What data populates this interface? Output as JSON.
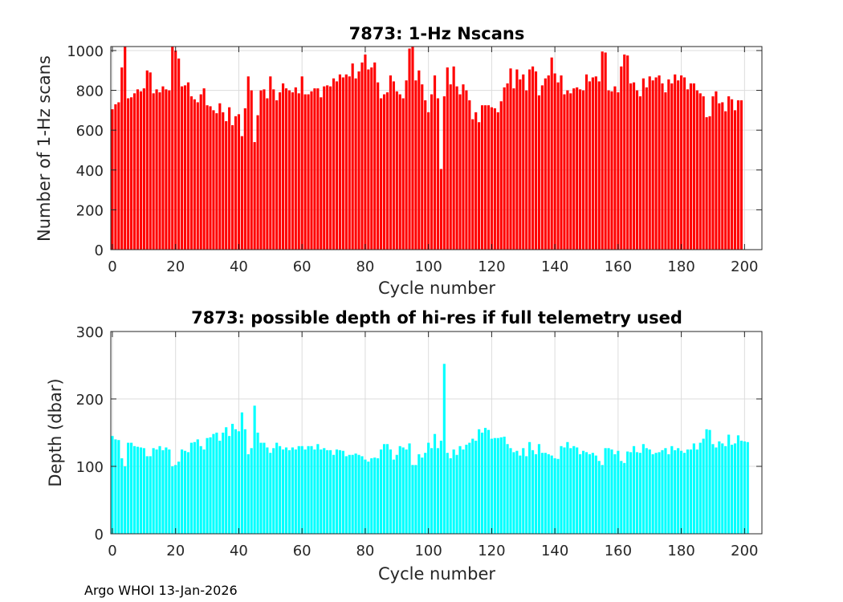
{
  "footer": "Argo WHOI 13-Jan-2026",
  "chart_data": [
    {
      "type": "bar",
      "title": "7873: 1-Hz Nscans",
      "xlabel": "Cycle number",
      "ylabel": "Number of 1-Hz scans",
      "xlim": [
        -0.5,
        205.5
      ],
      "ylim": [
        0,
        1020
      ],
      "xticks": [
        0,
        20,
        40,
        60,
        80,
        100,
        120,
        140,
        160,
        180,
        200
      ],
      "yticks": [
        0,
        200,
        400,
        600,
        800,
        1000
      ],
      "grid": true,
      "color": "#ff0000",
      "x_start": 0,
      "values": [
        705,
        730,
        740,
        915,
        1020,
        760,
        765,
        785,
        805,
        795,
        810,
        900,
        890,
        785,
        805,
        790,
        820,
        805,
        800,
        1020,
        1000,
        960,
        820,
        825,
        840,
        770,
        755,
        740,
        780,
        810,
        725,
        720,
        700,
        685,
        735,
        690,
        645,
        715,
        625,
        670,
        680,
        570,
        710,
        870,
        800,
        540,
        675,
        800,
        805,
        760,
        870,
        805,
        750,
        790,
        835,
        810,
        800,
        790,
        815,
        785,
        870,
        780,
        780,
        795,
        810,
        810,
        765,
        820,
        825,
        820,
        860,
        845,
        880,
        865,
        880,
        870,
        935,
        860,
        895,
        940,
        980,
        905,
        915,
        940,
        840,
        760,
        780,
        790,
        875,
        845,
        795,
        780,
        760,
        850,
        1010,
        1020,
        850,
        900,
        830,
        750,
        690,
        780,
        875,
        760,
        405,
        770,
        915,
        830,
        920,
        820,
        780,
        830,
        800,
        750,
        655,
        690,
        640,
        725,
        725,
        725,
        715,
        710,
        690,
        745,
        815,
        835,
        910,
        810,
        905,
        855,
        880,
        800,
        905,
        920,
        895,
        775,
        825,
        860,
        875,
        965,
        885,
        840,
        875,
        780,
        800,
        785,
        810,
        815,
        805,
        800,
        880,
        845,
        865,
        870,
        845,
        995,
        990,
        800,
        795,
        820,
        790,
        920,
        980,
        975,
        835,
        840,
        800,
        770,
        860,
        815,
        870,
        850,
        865,
        875,
        835,
        790,
        855,
        835,
        880,
        850,
        875,
        865,
        805,
        835,
        835,
        800,
        785,
        770,
        665,
        670,
        770,
        795,
        735,
        740,
        695,
        770,
        755,
        700,
        750,
        750
      ]
    },
    {
      "type": "bar",
      "title": "7873: possible depth of hi-res if full telemetry used",
      "xlabel": "Cycle number",
      "ylabel": "Depth (dbar)",
      "xlim": [
        -0.5,
        205.5
      ],
      "ylim": [
        0,
        300
      ],
      "xticks": [
        0,
        20,
        40,
        60,
        80,
        100,
        120,
        140,
        160,
        180,
        200
      ],
      "yticks": [
        0,
        100,
        200,
        300
      ],
      "grid": true,
      "color": "#00ffff",
      "x_start": 0,
      "values": [
        145,
        140,
        139,
        112,
        100,
        135,
        135,
        130,
        129,
        128,
        127,
        115,
        115,
        127,
        125,
        130,
        124,
        128,
        125,
        100,
        102,
        107,
        125,
        123,
        121,
        135,
        136,
        140,
        130,
        125,
        142,
        143,
        148,
        150,
        138,
        150,
        158,
        145,
        163,
        155,
        152,
        180,
        155,
        118,
        127,
        190,
        150,
        135,
        135,
        128,
        120,
        127,
        135,
        130,
        125,
        128,
        124,
        128,
        125,
        130,
        130,
        125,
        130,
        130,
        125,
        133,
        125,
        127,
        124,
        124,
        117,
        125,
        124,
        123,
        115,
        117,
        117,
        119,
        117,
        115,
        110,
        107,
        112,
        113,
        112,
        125,
        133,
        133,
        125,
        110,
        117,
        130,
        128,
        125,
        134,
        102,
        102,
        118,
        113,
        120,
        135,
        127,
        148,
        127,
        138,
        252,
        120,
        112,
        125,
        117,
        130,
        125,
        132,
        135,
        141,
        138,
        155,
        150,
        157,
        154,
        141,
        142,
        142,
        143,
        144,
        133,
        127,
        121,
        123,
        116,
        127,
        115,
        136,
        124,
        118,
        133,
        120,
        120,
        118,
        116,
        112,
        111,
        130,
        128,
        136,
        127,
        130,
        128,
        118,
        123,
        121,
        118,
        120,
        116,
        108,
        102,
        127,
        127,
        125,
        118,
        123,
        108,
        105,
        122,
        121,
        130,
        121,
        120,
        133,
        127,
        125,
        118,
        120,
        121,
        124,
        127,
        118,
        130,
        124,
        127,
        123,
        120,
        125,
        125,
        134,
        125,
        135,
        141,
        155,
        154,
        133,
        128,
        137,
        134,
        130,
        147,
        132,
        134,
        146,
        138,
        137,
        136
      ]
    }
  ]
}
